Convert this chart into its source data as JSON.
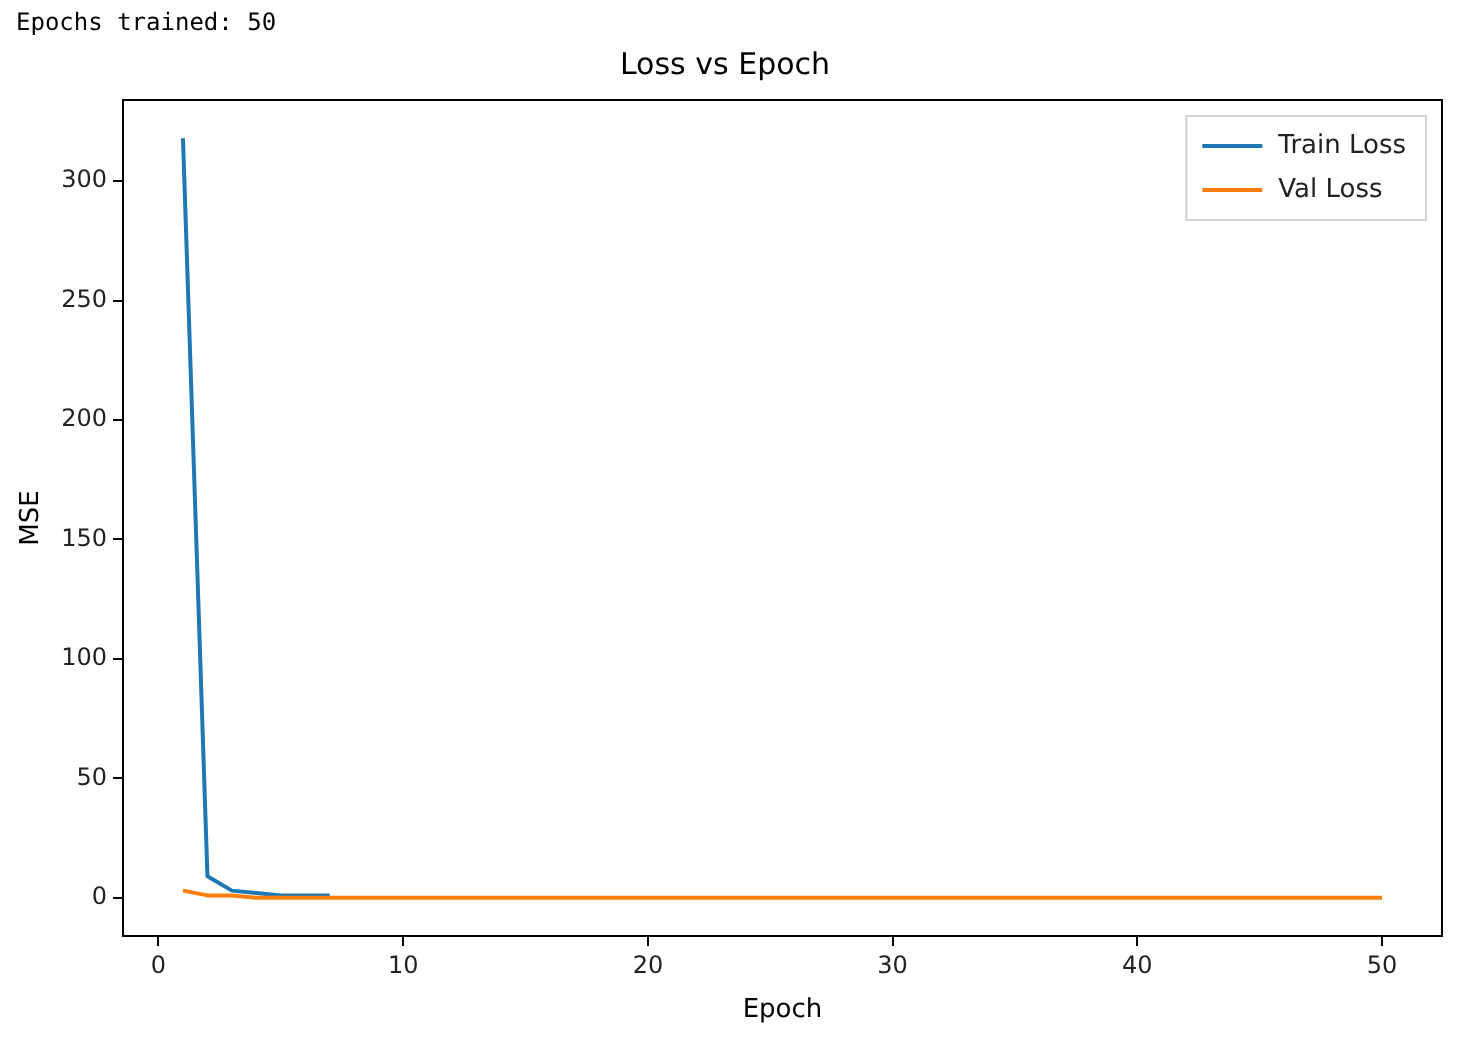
{
  "chart_data": {
    "type": "line",
    "title": "Loss vs Epoch",
    "xlabel": "Epoch",
    "ylabel": "MSE",
    "annotations": [
      "Epochs trained: 50"
    ],
    "x": [
      1,
      2,
      3,
      4,
      5,
      6,
      7,
      8,
      9,
      10,
      11,
      12,
      13,
      14,
      15,
      16,
      17,
      18,
      19,
      20,
      21,
      22,
      23,
      24,
      25,
      26,
      27,
      28,
      29,
      30,
      31,
      32,
      33,
      34,
      35,
      36,
      37,
      38,
      39,
      40,
      41,
      42,
      43,
      44,
      45,
      46,
      47,
      48,
      49,
      50
    ],
    "series": [
      {
        "name": "Train Loss",
        "color": "#1f77b4",
        "values": [
          318,
          9,
          3,
          2,
          1,
          1,
          1,
          null,
          null,
          null,
          null,
          null,
          null,
          null,
          null,
          null,
          null,
          null,
          null,
          null,
          null,
          null,
          null,
          null,
          null,
          null,
          null,
          null,
          null,
          null,
          null,
          null,
          null,
          null,
          null,
          null,
          null,
          null,
          null,
          null,
          null,
          null,
          null,
          null,
          null,
          null,
          null,
          null,
          null,
          null
        ]
      },
      {
        "name": "Val Loss",
        "color": "#ff7f0e",
        "values": [
          3,
          1,
          1,
          0,
          0,
          0,
          0,
          0,
          0,
          0,
          0,
          0,
          0,
          0,
          0,
          0,
          0,
          0,
          0,
          0,
          0,
          0,
          0,
          0,
          0,
          0,
          0,
          0,
          0,
          0,
          0,
          0,
          0,
          0,
          0,
          0,
          0,
          0,
          0,
          0,
          0,
          0,
          0,
          0,
          0,
          0,
          0,
          0,
          0,
          0
        ]
      }
    ],
    "xlim": [
      -1.45,
      52.45
    ],
    "xticks": [
      0,
      10,
      20,
      30,
      40,
      50
    ],
    "ylim": [
      -16,
      334
    ],
    "yticks": [
      0,
      50,
      100,
      150,
      200,
      250,
      300
    ],
    "grid": false,
    "legend": "top right",
    "marker": "none",
    "line_style": "solid"
  }
}
